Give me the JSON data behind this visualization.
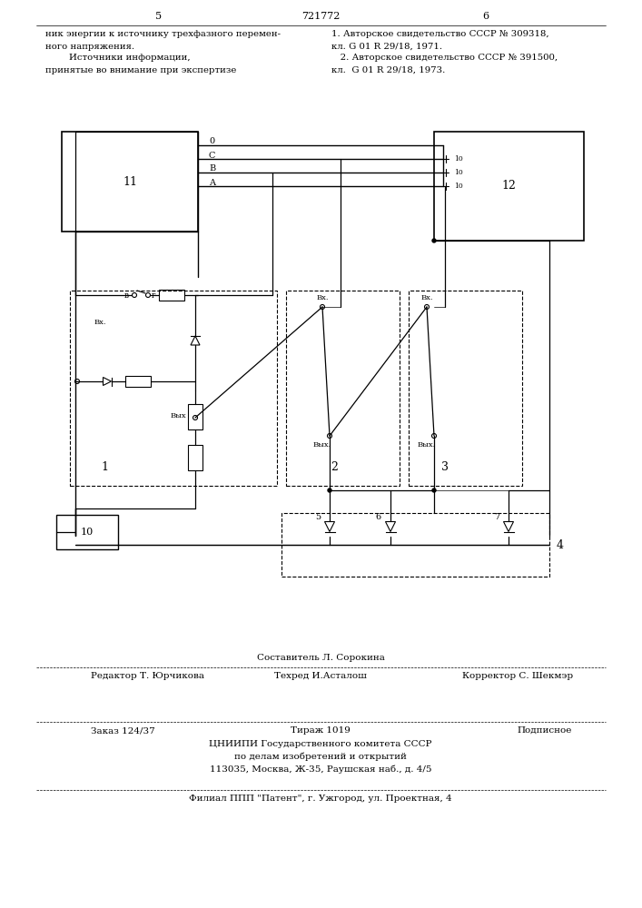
{
  "page_num_left": "5",
  "page_num_center": "721772",
  "page_num_right": "6",
  "text_left_col": [
    "ник энергии к источнику трехфазного перемен-",
    "ного напряжения.",
    "        Источники информации,",
    "принятые во внимание при экспертизе"
  ],
  "text_right_col": [
    "1. Авторское свидетельство СССР № 309318,",
    "кл. G 01 R 29/18, 1971.",
    "   2. Авторское свидетельство СССР № 391500,",
    "кл.  G 01 R 29/18, 1973."
  ],
  "footer_composer": "Составитель Л. Сорокина",
  "footer_editor": "Редактор Т. Юрчикова",
  "footer_techred": "Техред И.Асталош",
  "footer_corrector": "Корректор С. Шекмэр",
  "footer_order": "Заказ 124/37",
  "footer_tirazh": "Тираж 1019",
  "footer_podpisnoe": "Подписное",
  "footer_org1": "ЦНИИПИ Государственного комитета СССР",
  "footer_org2": "по делам изобретений и открытий",
  "footer_org3": "113035, Москва, Ж-35, Раушская наб., д. 4/5",
  "footer_filial": "Филиал ППП \"Патент\", г. Ужгород, ул. Проектная, 4",
  "bg_color": "#ffffff",
  "line_color": "#000000",
  "text_color": "#000000"
}
